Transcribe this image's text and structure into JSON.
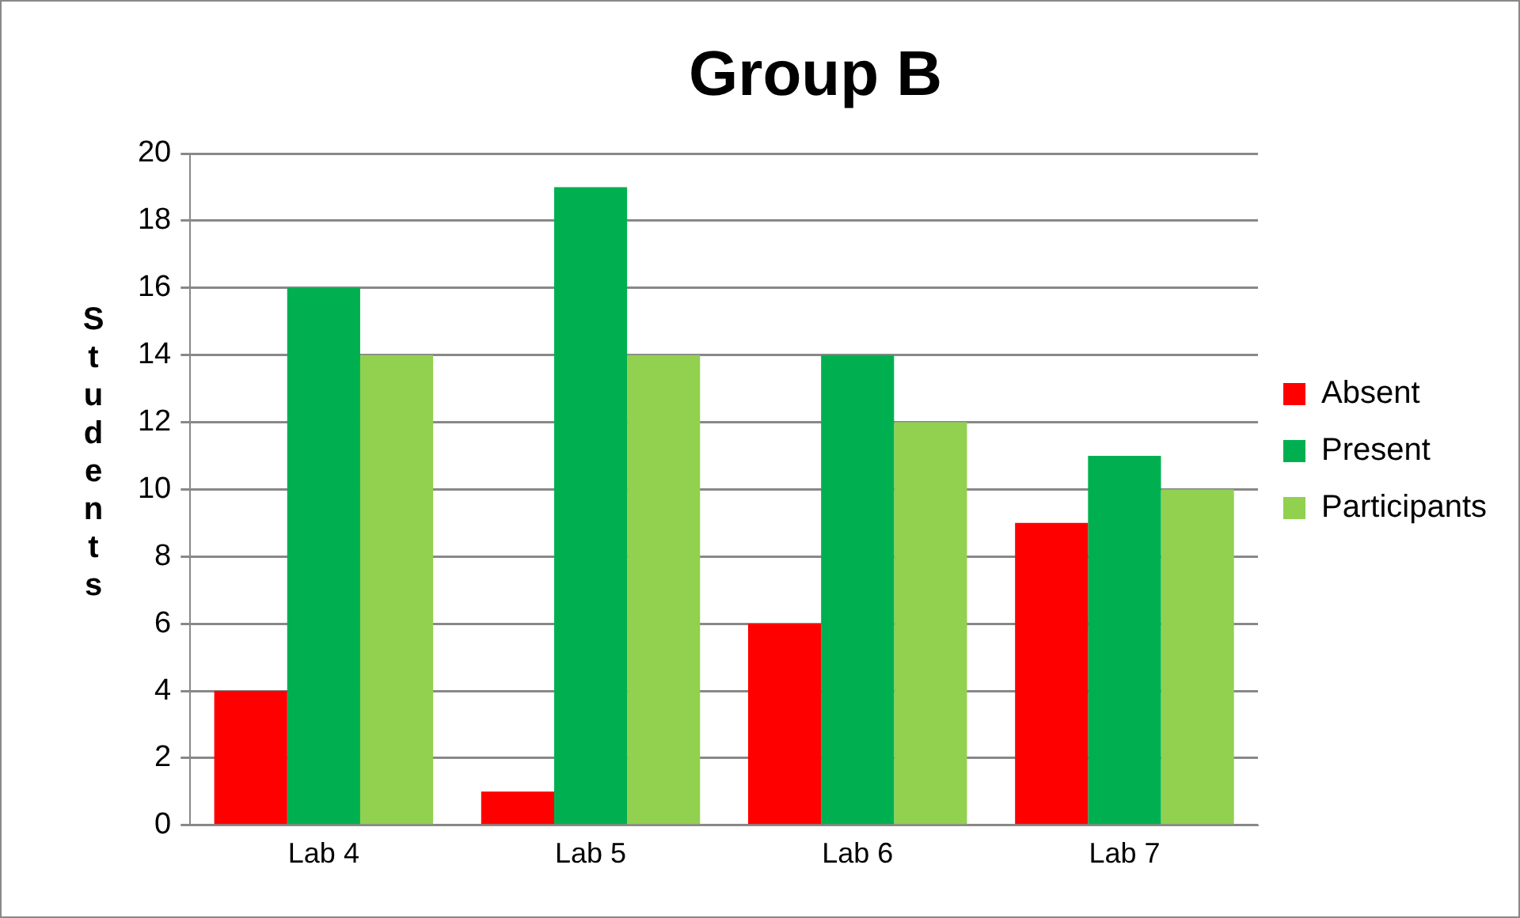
{
  "chart_data": {
    "type": "bar",
    "title": "Group B",
    "ylabel": "Students",
    "categories": [
      "Lab 4",
      "Lab 5",
      "Lab 6",
      "Lab 7"
    ],
    "series": [
      {
        "name": "Absent",
        "color": "#ff0000",
        "values": [
          4,
          1,
          6,
          9
        ]
      },
      {
        "name": "Present",
        "color": "#00b050",
        "values": [
          16,
          19,
          14,
          11
        ]
      },
      {
        "name": "Participants",
        "color": "#92d050",
        "values": [
          14,
          14,
          12,
          10
        ]
      }
    ],
    "ylim": [
      0,
      20
    ],
    "yticks": [
      0,
      2,
      4,
      6,
      8,
      10,
      12,
      14,
      16,
      18,
      20
    ],
    "grid": "y",
    "legend": "right"
  }
}
